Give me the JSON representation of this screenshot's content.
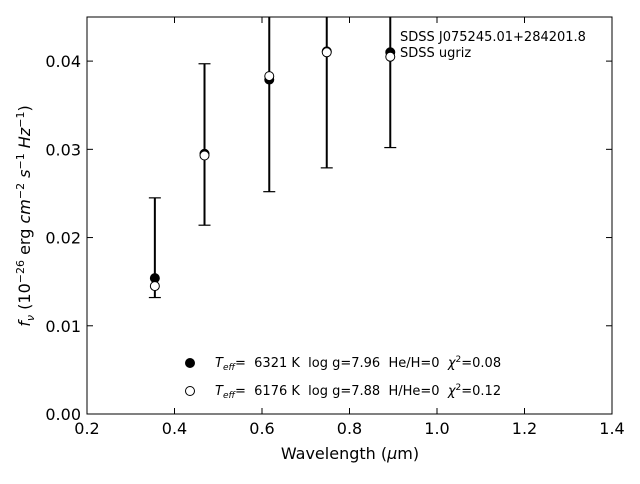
{
  "chart_data": {
    "type": "scatter",
    "xlabel": "Wavelength (µm)",
    "ylabel": "fν (10⁻²⁶ erg cm⁻² s⁻¹ Hz⁻¹)",
    "xlim": [
      0.2,
      1.4
    ],
    "ylim": [
      0.0,
      0.045
    ],
    "x_ticks": [
      0.2,
      0.4,
      0.6,
      0.8,
      1.0,
      1.2,
      1.4
    ],
    "y_ticks": [
      0.0,
      0.01,
      0.02,
      0.03,
      0.04
    ],
    "x_tick_labels": [
      "0.2",
      "0.4",
      "0.6",
      "0.8",
      "1.0",
      "1.2",
      "1.4"
    ],
    "y_tick_labels": [
      "0.00",
      "0.01",
      "0.02",
      "0.03",
      "0.04"
    ],
    "annotations": [
      "SDSS J075245.01+284201.8",
      "SDSS ugriz"
    ],
    "grid": false,
    "legend_placement": "lower-center",
    "observed": {
      "x": [
        0.3551,
        0.4686,
        0.6166,
        0.748,
        0.8932
      ],
      "y": [
        0.0154,
        0.0296,
        0.0379,
        0.0411,
        0.041
      ],
      "yerr_low": [
        0.0132,
        0.0214,
        0.0252,
        0.0279,
        0.0302
      ],
      "yerr_high": [
        0.0245,
        0.0397,
        0.047,
        0.047,
        0.047
      ]
    },
    "series": [
      {
        "name": "Teff= 6321 K log g=7.96 He/H=0 χ²=0.08",
        "marker": "filled-circle",
        "x": [
          0.3551,
          0.4686,
          0.6166,
          0.748,
          0.8932
        ],
        "y": [
          0.0154,
          0.0295,
          0.0379,
          0.0411,
          0.041
        ]
      },
      {
        "name": "Teff= 6176 K log g=7.88 H/He=0 χ²=0.12",
        "marker": "open-circle",
        "x": [
          0.3551,
          0.4686,
          0.6166,
          0.748,
          0.8932
        ],
        "y": [
          0.0145,
          0.0293,
          0.0383,
          0.041,
          0.0405
        ]
      }
    ],
    "legend": {
      "entries": [
        {
          "marker": "filled-circle",
          "teff_label": "T",
          "teff_sub": "eff",
          "teff_rest": "=  6321 K  log g=7.96  He/H=0  ",
          "chi": "χ",
          "chi_sup": "2",
          "chi_rest": "=0.08"
        },
        {
          "marker": "open-circle",
          "teff_label": "T",
          "teff_sub": "eff",
          "teff_rest": "=  6176 K  log g=7.88  H/He=0  ",
          "chi": "χ",
          "chi_sup": "2",
          "chi_rest": "=0.12"
        }
      ]
    },
    "axis_text": {
      "xlabel_main": "Wavelength (",
      "xlabel_mu": "μ",
      "xlabel_unit": "m)",
      "ylabel_f": "f",
      "ylabel_nu": "ν",
      "ylabel_open": " (10",
      "ylabel_exp1": "−26",
      "ylabel_erg": " erg ",
      "ylabel_cm": "cm",
      "ylabel_exp2": "−2",
      "ylabel_s": " s",
      "ylabel_exp3": "−1",
      "ylabel_hz": " Hz",
      "ylabel_exp4": "−1",
      "ylabel_close": ")"
    }
  }
}
